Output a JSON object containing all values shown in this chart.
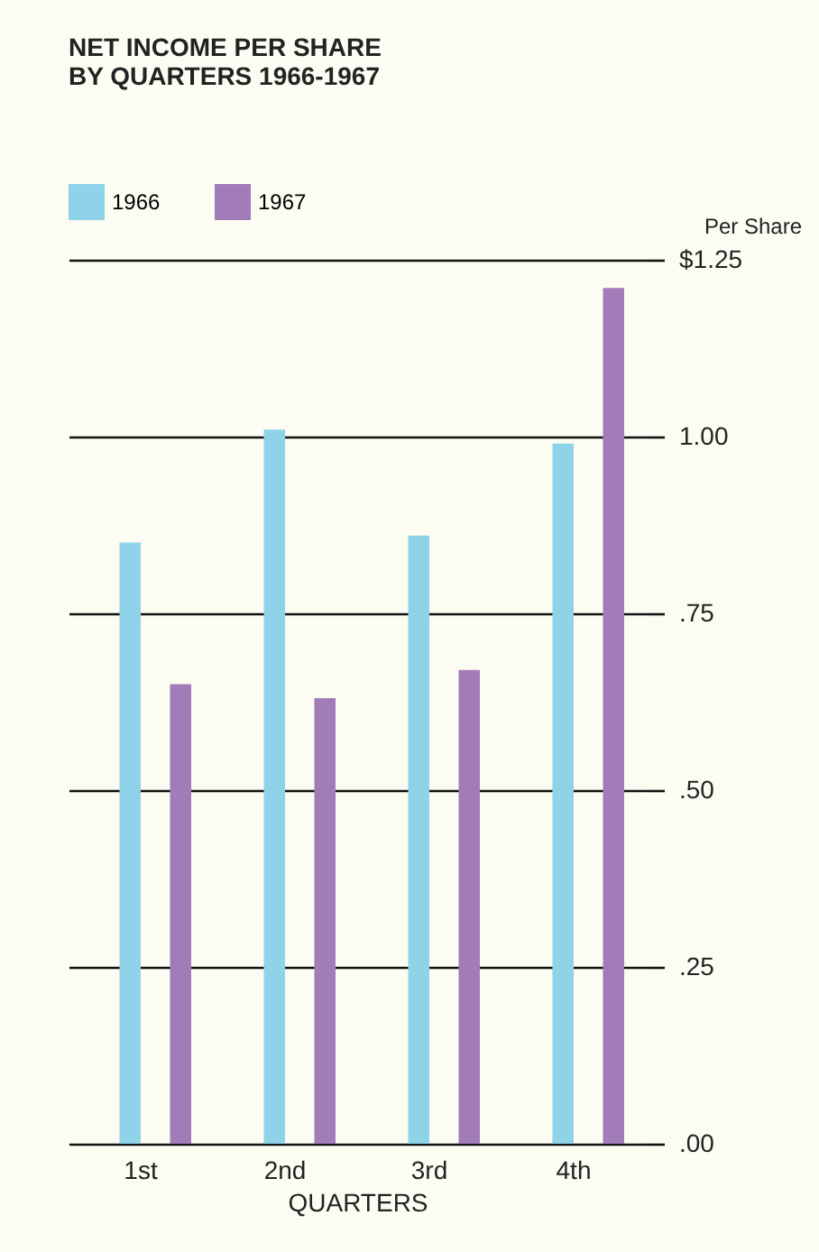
{
  "chart_data": {
    "type": "bar",
    "title": "NET INCOME PER SHARE\nBY QUARTERS 1966-1967",
    "xlabel": "QUARTERS",
    "ylabel": "Per Share",
    "categories": [
      "1st",
      "2nd",
      "3rd",
      "4th"
    ],
    "series": [
      {
        "name": "1966",
        "color": "#8fd3e8",
        "values": [
          0.85,
          1.01,
          0.86,
          0.99
        ]
      },
      {
        "name": "1967",
        "color": "#a27cb8",
        "values": [
          0.65,
          0.63,
          0.67,
          1.21
        ]
      }
    ],
    "ylim": [
      0,
      1.25
    ],
    "yticks": [
      {
        "value": 0,
        "label": ".00"
      },
      {
        "value": 0.25,
        "label": ".25"
      },
      {
        "value": 0.5,
        "label": ".50"
      },
      {
        "value": 0.75,
        "label": ".75"
      },
      {
        "value": 1,
        "label": "1.00"
      },
      {
        "value": 1.25,
        "label": "$1.25"
      }
    ],
    "grid": "y",
    "legend": "top left"
  }
}
